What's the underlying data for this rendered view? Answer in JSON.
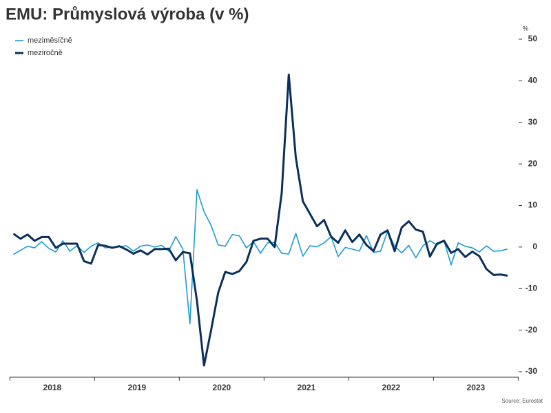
{
  "chart_data": {
    "type": "line",
    "title": "EMU: Průmyslová výroba (v %)",
    "y_unit": "%",
    "source": "Source: Eurostat",
    "categories": [
      "2018",
      null,
      null,
      null,
      null,
      null,
      null,
      null,
      null,
      null,
      null,
      null,
      "2019",
      null,
      null,
      null,
      null,
      null,
      null,
      null,
      null,
      null,
      null,
      null,
      "2020",
      null,
      null,
      null,
      null,
      null,
      null,
      null,
      null,
      null,
      null,
      null,
      "2021",
      null,
      null,
      null,
      null,
      null,
      null,
      null,
      null,
      null,
      null,
      null,
      "2022",
      null,
      null,
      null,
      null,
      null,
      null,
      null,
      null,
      null,
      null,
      null,
      "2023",
      null,
      null,
      null,
      null,
      null,
      null,
      null,
      null,
      null,
      null
    ],
    "series": [
      {
        "name": "meziměsíčně",
        "color": "#1a9bd7",
        "width": 1.6,
        "values": [
          -1.8,
          -0.8,
          0.2,
          -0.2,
          1.3,
          -0.3,
          -1.2,
          1.5,
          -1.0,
          0.3,
          -1.3,
          0.2,
          1.0,
          -0.2,
          0.0,
          0.1,
          0.3,
          -1.0,
          0.2,
          0.5,
          0.0,
          0.4,
          -1.0,
          2.5,
          -0.5,
          -18.5,
          13.8,
          8.5,
          5.2,
          0.5,
          0.2,
          3.0,
          2.7,
          -0.2,
          1.3,
          -1.5,
          1.0,
          1.1,
          -1.5,
          -1.7,
          3.3,
          -2.2,
          0.3,
          0.1,
          1.0,
          2.5,
          -2.3,
          -0.1,
          -0.5,
          -1.0,
          2.8,
          -1.3,
          -1.0,
          3.8,
          0.2,
          -1.4,
          0.4,
          -2.6,
          0.3,
          1.5,
          0.5,
          1.5,
          -4.3,
          1.0,
          0.2,
          -0.2,
          -1.2,
          0.3,
          -1.0,
          -0.9,
          -0.5
        ]
      },
      {
        "name": "meziročně",
        "color": "#0b2f5b",
        "width": 3,
        "values": [
          3.2,
          2.0,
          3.0,
          1.5,
          2.4,
          2.4,
          -0.2,
          0.8,
          0.8,
          0.8,
          -3.4,
          -4.0,
          0.5,
          0.3,
          -0.2,
          0.2,
          -0.6,
          -1.6,
          -0.8,
          -1.8,
          -0.5,
          -0.5,
          -0.4,
          -3.2,
          -1.2,
          -1.5,
          -13,
          -28.5,
          -20,
          -11,
          -6,
          -6.5,
          -5.8,
          -3.6,
          1.5,
          2,
          2,
          0,
          13,
          41.5,
          21.5,
          11,
          8,
          5,
          6.5,
          2.5,
          1,
          4,
          1.2,
          3,
          0.5,
          -1,
          3,
          4,
          -1,
          4.7,
          6.2,
          4.2,
          3.7,
          -2.3,
          0.8,
          1.5,
          -1.4,
          -0.5,
          -2.4,
          -1.1,
          -2.2,
          -5.3,
          -6.7,
          -6.6,
          -6.9
        ]
      }
    ],
    "ylim": [
      -30,
      50
    ],
    "yticks": [
      -30,
      -20,
      -10,
      0,
      10,
      20,
      30,
      40,
      50
    ],
    "y_axis_side": "right",
    "legend": "top-left",
    "grid": false
  }
}
